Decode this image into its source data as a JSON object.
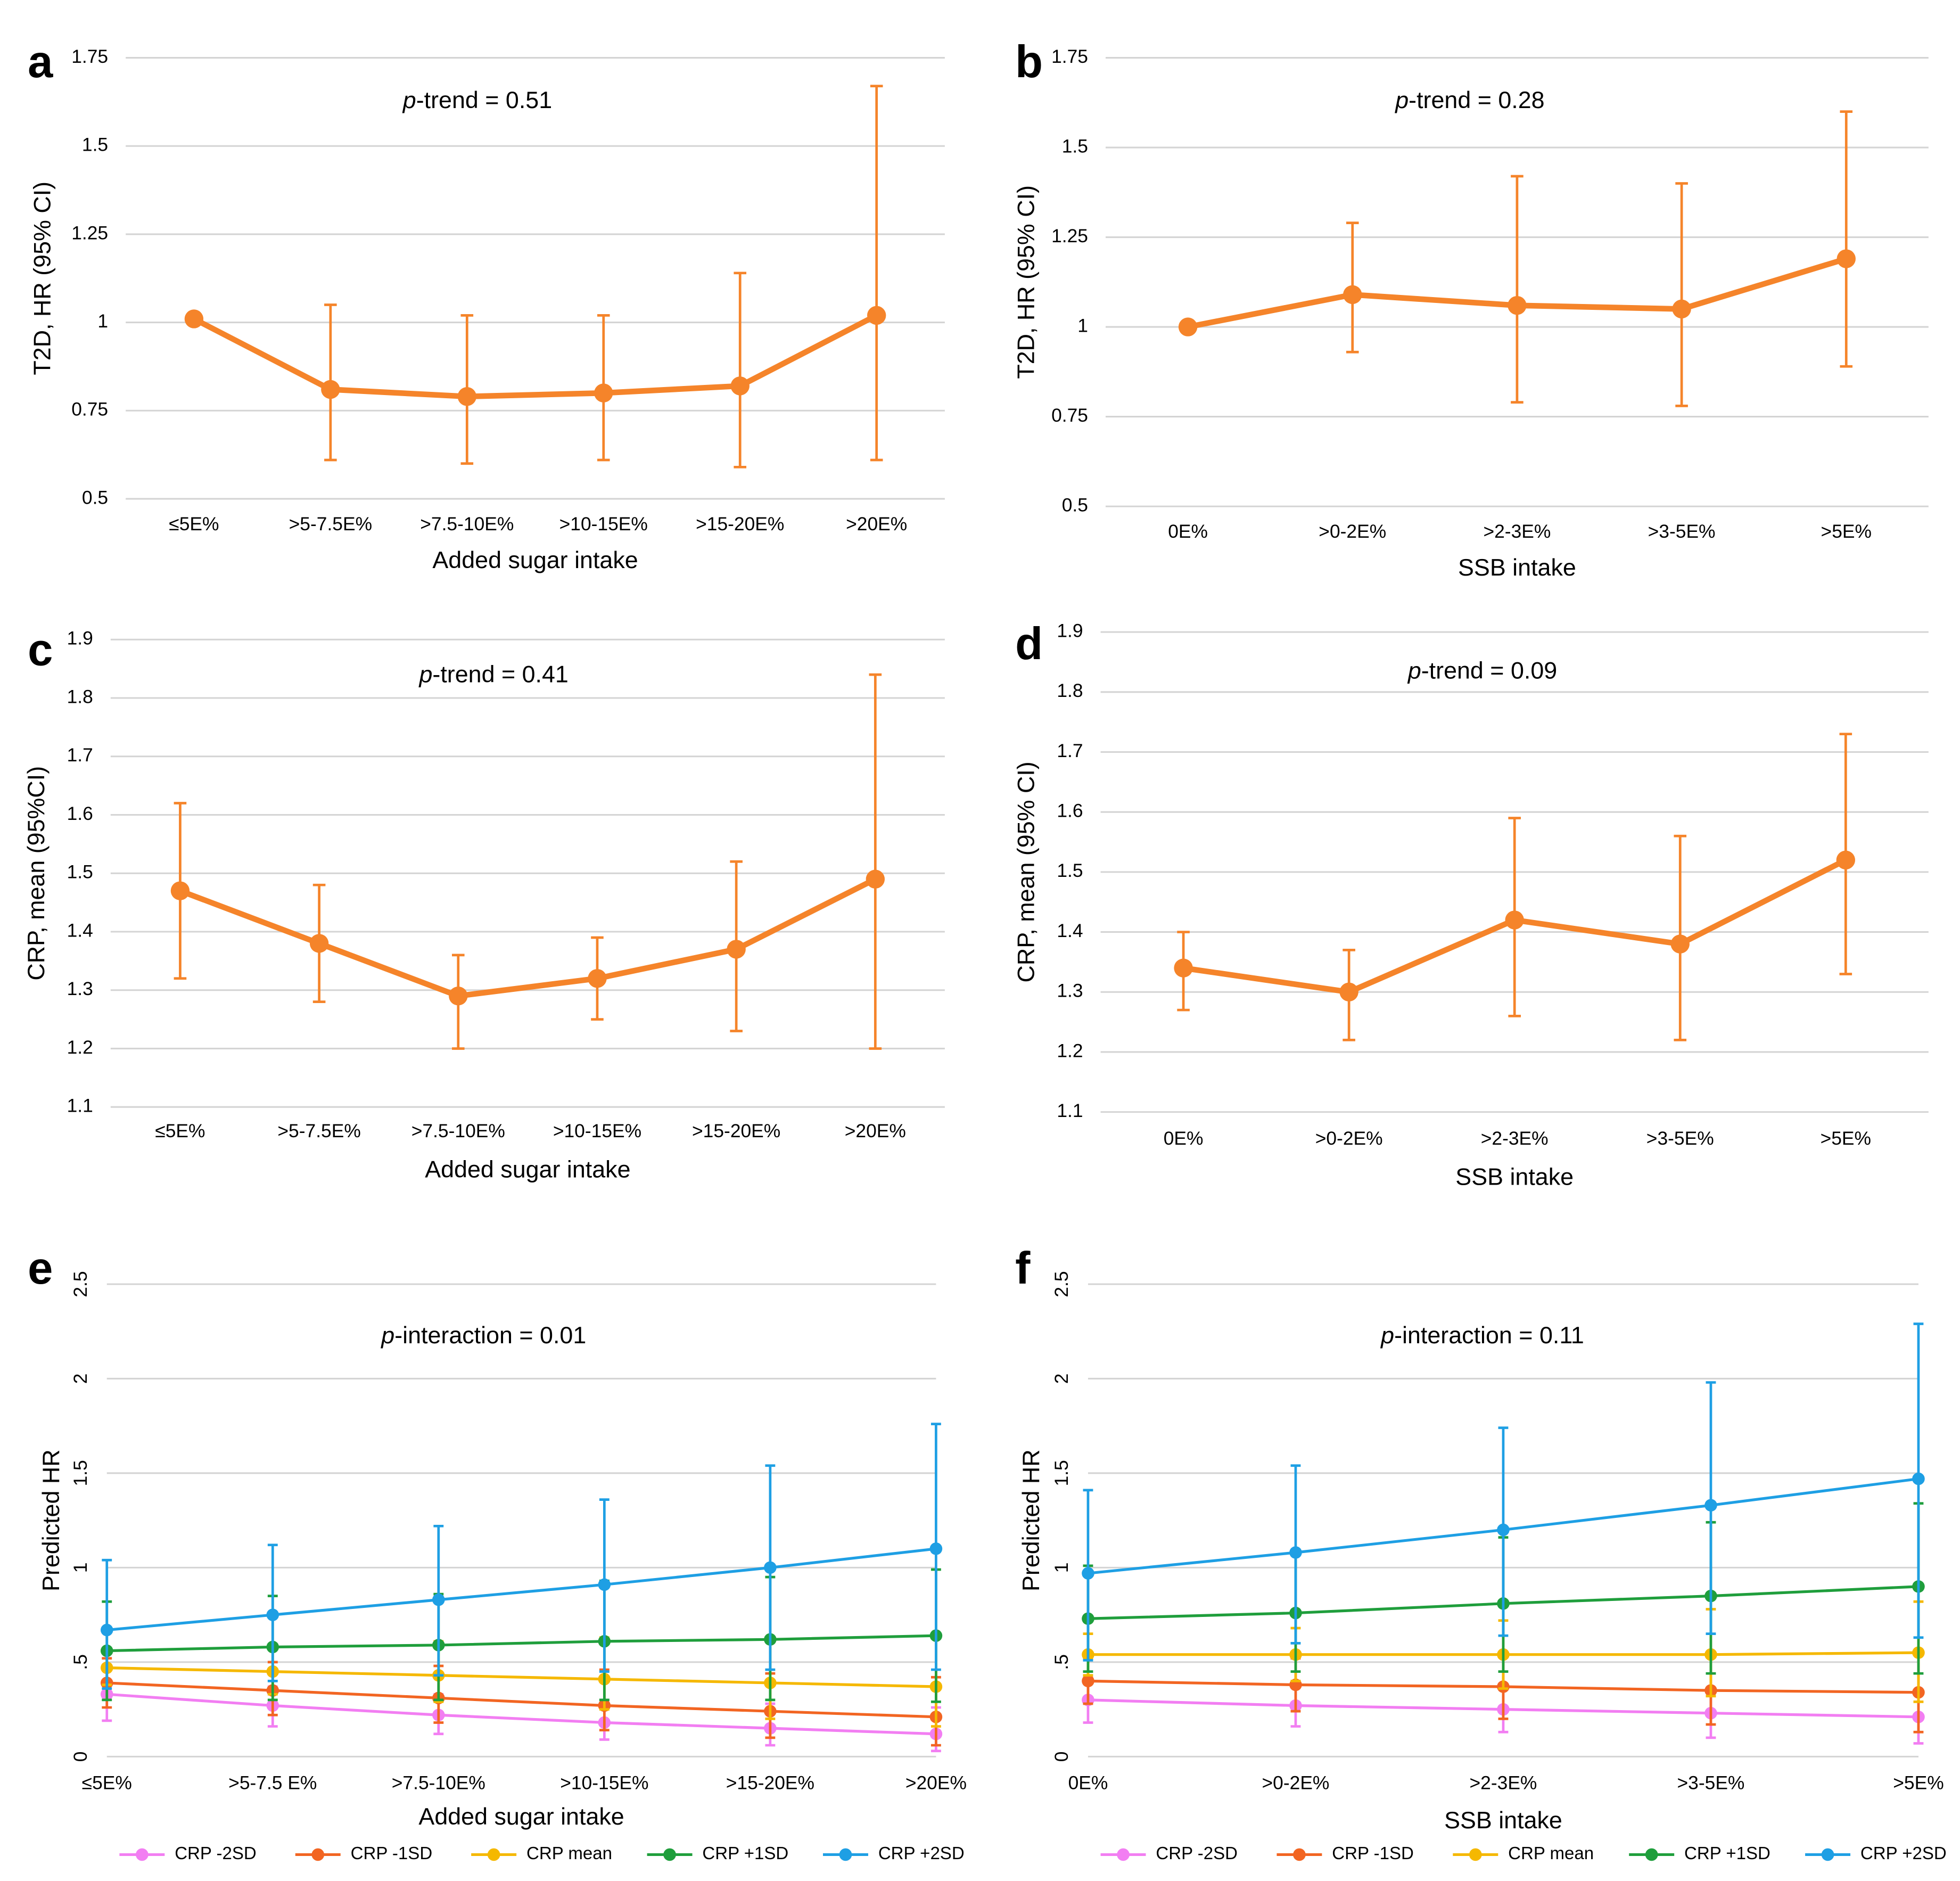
{
  "chart_data": [
    {
      "type": "line",
      "panel": "a",
      "annotation": [
        "p",
        "-trend = 0.51"
      ],
      "x_label": "Added sugar intake",
      "y_label": "T2D, HR (95% CI)",
      "categories": [
        "≤5E%",
        ">5-7.5E%",
        ">7.5-10E%",
        ">10-15E%",
        ">15-20E%",
        ">20E%"
      ],
      "values": [
        1.01,
        0.81,
        0.79,
        0.8,
        0.82,
        1.02
      ],
      "ci_low": [
        null,
        0.61,
        0.6,
        0.61,
        0.59,
        0.61
      ],
      "ci_high": [
        null,
        1.05,
        1.02,
        1.02,
        1.14,
        1.67
      ],
      "color": "#f5842a",
      "ylim": [
        0.5,
        1.75
      ],
      "yticks": [
        0.5,
        0.75,
        1,
        1.25,
        1.5,
        1.75
      ],
      "grid": true
    },
    {
      "type": "line",
      "panel": "b",
      "annotation": [
        "p",
        "-trend = 0.28"
      ],
      "x_label": "SSB intake",
      "y_label": "T2D, HR (95% CI)",
      "categories": [
        "0E%",
        ">0-2E%",
        ">2-3E%",
        ">3-5E%",
        ">5E%"
      ],
      "values": [
        1.0,
        1.09,
        1.06,
        1.05,
        1.19
      ],
      "ci_low": [
        null,
        0.93,
        0.79,
        0.78,
        0.89
      ],
      "ci_high": [
        null,
        1.29,
        1.42,
        1.4,
        1.6
      ],
      "color": "#f5842a",
      "ylim": [
        0.5,
        1.75
      ],
      "yticks": [
        0.5,
        0.75,
        1,
        1.25,
        1.5,
        1.75
      ],
      "grid": true
    },
    {
      "type": "line",
      "panel": "c",
      "annotation": [
        "p",
        "-trend = 0.41"
      ],
      "x_label": "Added sugar intake",
      "y_label": "CRP, mean (95%CI)",
      "categories": [
        "≤5E%",
        ">5-7.5E%",
        ">7.5-10E%",
        ">10-15E%",
        ">15-20E%",
        ">20E%"
      ],
      "values": [
        1.47,
        1.38,
        1.29,
        1.32,
        1.37,
        1.49
      ],
      "ci_low": [
        1.32,
        1.28,
        1.2,
        1.25,
        1.23,
        1.2
      ],
      "ci_high": [
        1.62,
        1.48,
        1.36,
        1.39,
        1.52,
        1.84
      ],
      "color": "#f5842a",
      "ylim": [
        1.1,
        1.9
      ],
      "yticks": [
        1.1,
        1.2,
        1.3,
        1.4,
        1.5,
        1.6,
        1.7,
        1.8,
        1.9
      ],
      "grid": true
    },
    {
      "type": "line",
      "panel": "d",
      "annotation": [
        "p",
        "-trend = 0.09"
      ],
      "x_label": "SSB intake",
      "y_label": "CRP, mean (95% CI)",
      "categories": [
        "0E%",
        ">0-2E%",
        ">2-3E%",
        ">3-5E%",
        ">5E%"
      ],
      "values": [
        1.34,
        1.3,
        1.42,
        1.38,
        1.52
      ],
      "ci_low": [
        1.27,
        1.22,
        1.26,
        1.22,
        1.33
      ],
      "ci_high": [
        1.4,
        1.37,
        1.59,
        1.56,
        1.73
      ],
      "color": "#f5842a",
      "ylim": [
        1.1,
        1.9
      ],
      "yticks": [
        1.1,
        1.2,
        1.3,
        1.4,
        1.5,
        1.6,
        1.7,
        1.8,
        1.9
      ],
      "grid": true
    },
    {
      "type": "multiline",
      "panel": "e",
      "annotation": [
        "p",
        "-interaction = 0.01"
      ],
      "x_label": "Added sugar intake",
      "y_label": "Predicted HR",
      "categories": [
        "≤5E%",
        ">5-7.5 E%",
        ">7.5-10E%",
        ">10-15E%",
        ">15-20E%",
        ">20E%"
      ],
      "series": [
        {
          "name": "CRP -2SD",
          "color": "#f27ef2",
          "values": [
            0.33,
            0.27,
            0.22,
            0.18,
            0.15,
            0.12
          ],
          "ci_low": [
            0.19,
            0.16,
            0.12,
            0.09,
            0.06,
            0.03
          ],
          "ci_high": [
            0.4,
            0.37,
            0.33,
            0.3,
            0.28,
            0.26
          ]
        },
        {
          "name": "CRP -1SD",
          "color": "#f26522",
          "values": [
            0.39,
            0.35,
            0.31,
            0.27,
            0.24,
            0.21
          ],
          "ci_low": [
            0.26,
            0.22,
            0.18,
            0.14,
            0.1,
            0.06
          ],
          "ci_high": [
            0.52,
            0.5,
            0.48,
            0.46,
            0.44,
            0.42
          ]
        },
        {
          "name": "CRP mean",
          "color": "#f5b800",
          "values": [
            0.47,
            0.45,
            0.43,
            0.41,
            0.39,
            0.37
          ],
          "ci_low": [
            0.38,
            0.33,
            0.29,
            0.25,
            0.2,
            0.16
          ],
          "ci_high": [
            0.57,
            0.59,
            0.61,
            0.63,
            0.63,
            0.65
          ]
        },
        {
          "name": "CRP +1SD",
          "color": "#1f9e3c",
          "values": [
            0.56,
            0.58,
            0.59,
            0.61,
            0.62,
            0.64
          ],
          "ci_low": [
            0.3,
            0.3,
            0.3,
            0.3,
            0.3,
            0.29
          ],
          "ci_high": [
            0.82,
            0.85,
            0.86,
            0.93,
            0.95,
            0.99
          ]
        },
        {
          "name": "CRP +2SD",
          "color": "#1e9fe4",
          "values": [
            0.67,
            0.75,
            0.83,
            0.91,
            1.0,
            1.1
          ],
          "ci_low": [
            0.36,
            0.4,
            0.43,
            0.45,
            0.46,
            0.46
          ],
          "ci_high": [
            1.04,
            1.12,
            1.22,
            1.36,
            1.54,
            1.76
          ]
        }
      ],
      "ylim": [
        0,
        2.5
      ],
      "yticks": [
        0,
        {
          "value": 0.5,
          "label": ".5"
        },
        1,
        1.5,
        2,
        2.5
      ],
      "grid": true,
      "legend": "bottom"
    },
    {
      "type": "multiline",
      "panel": "f",
      "annotation": [
        "p",
        "-interaction = 0.11"
      ],
      "x_label": "SSB intake",
      "y_label": "Predicted HR",
      "categories": [
        "0E%",
        ">0-2E%",
        ">2-3E%",
        ">3-5E%",
        ">5E%"
      ],
      "series": [
        {
          "name": "CRP -2SD",
          "color": "#f27ef2",
          "values": [
            0.3,
            0.27,
            0.25,
            0.23,
            0.21
          ],
          "ci_low": [
            0.18,
            0.16,
            0.13,
            0.1,
            0.07
          ],
          "ci_high": [
            0.42,
            0.4,
            0.38,
            0.36,
            0.35
          ]
        },
        {
          "name": "CRP -1SD",
          "color": "#f26522",
          "values": [
            0.4,
            0.38,
            0.37,
            0.35,
            0.34
          ],
          "ci_low": [
            0.28,
            0.24,
            0.2,
            0.17,
            0.13
          ],
          "ci_high": [
            0.52,
            0.52,
            0.53,
            0.54,
            0.55
          ]
        },
        {
          "name": "CRP mean",
          "color": "#f5b800",
          "values": [
            0.54,
            0.54,
            0.54,
            0.54,
            0.55
          ],
          "ci_low": [
            0.43,
            0.4,
            0.36,
            0.32,
            0.29
          ],
          "ci_high": [
            0.65,
            0.68,
            0.72,
            0.78,
            0.82
          ]
        },
        {
          "name": "CRP +1SD",
          "color": "#1f9e3c",
          "values": [
            0.73,
            0.76,
            0.81,
            0.85,
            0.9
          ],
          "ci_low": [
            0.45,
            0.45,
            0.45,
            0.44,
            0.44
          ],
          "ci_high": [
            1.01,
            1.09,
            1.16,
            1.24,
            1.34
          ]
        },
        {
          "name": "CRP +2SD",
          "color": "#1e9fe4",
          "values": [
            0.97,
            1.08,
            1.2,
            1.33,
            1.47
          ],
          "ci_low": [
            0.51,
            0.6,
            0.64,
            0.65,
            0.63
          ],
          "ci_high": [
            1.41,
            1.54,
            1.74,
            1.98,
            2.29
          ]
        }
      ],
      "ylim": [
        0,
        2.5
      ],
      "yticks": [
        0,
        {
          "value": 0.5,
          "label": ".5"
        },
        1,
        1.5,
        2,
        2.5
      ],
      "grid": true,
      "legend": "bottom"
    }
  ]
}
